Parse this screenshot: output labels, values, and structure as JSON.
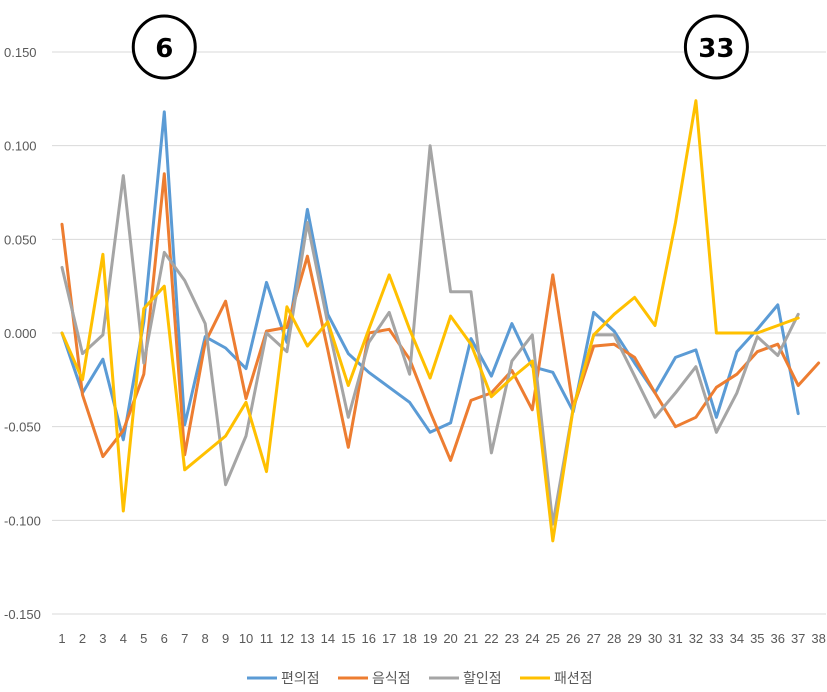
{
  "chart_data": {
    "type": "line",
    "title": "",
    "xlabel": "",
    "ylabel": "",
    "x": [
      "1",
      "2",
      "3",
      "4",
      "5",
      "6",
      "7",
      "8",
      "9",
      "10",
      "11",
      "12",
      "13",
      "14",
      "15",
      "16",
      "17",
      "18",
      "19",
      "20",
      "21",
      "22",
      "23",
      "24",
      "25",
      "26",
      "27",
      "28",
      "29",
      "30",
      "31",
      "32",
      "33",
      "34",
      "35",
      "36",
      "37",
      "38"
    ],
    "ylim": [
      -0.15,
      0.15
    ],
    "yticks": [
      "0.150",
      "0.100",
      "0.050",
      "0.000",
      "-0.050",
      "-0.100",
      "-0.150"
    ],
    "ytick_values": [
      0.15,
      0.1,
      0.05,
      0.0,
      -0.05,
      -0.1,
      -0.15
    ],
    "grid": true,
    "legend_position": "bottom",
    "series": [
      {
        "name": "편의점",
        "color": "#5b9bd5",
        "values": [
          0.0,
          -0.032,
          -0.014,
          -0.057,
          0.006,
          0.118,
          -0.049,
          -0.002,
          -0.008,
          -0.019,
          0.027,
          -0.005,
          0.066,
          0.01,
          -0.011,
          -0.021,
          -0.029,
          -0.037,
          -0.053,
          -0.048,
          -0.003,
          -0.023,
          0.005,
          -0.018,
          -0.021,
          -0.042,
          0.011,
          0.001,
          -0.016,
          -0.032,
          -0.013,
          -0.009,
          -0.045,
          -0.01,
          0.002,
          0.015,
          -0.043,
          null
        ]
      },
      {
        "name": "음식점",
        "color": "#ed7d31",
        "values": [
          0.058,
          -0.033,
          -0.066,
          -0.052,
          -0.022,
          0.085,
          -0.065,
          -0.005,
          0.017,
          -0.035,
          0.001,
          0.003,
          0.041,
          -0.009,
          -0.061,
          0.0,
          0.002,
          -0.014,
          -0.042,
          -0.068,
          -0.036,
          -0.032,
          -0.02,
          -0.041,
          0.031,
          -0.04,
          -0.007,
          -0.006,
          -0.013,
          -0.032,
          -0.05,
          -0.045,
          -0.029,
          -0.022,
          -0.01,
          -0.006,
          -0.028,
          -0.016
        ]
      },
      {
        "name": "할인점",
        "color": "#a5a5a5",
        "values": [
          0.035,
          -0.011,
          -0.001,
          0.084,
          -0.016,
          0.043,
          0.028,
          0.005,
          -0.081,
          -0.055,
          0.0,
          -0.01,
          0.059,
          0.005,
          -0.045,
          -0.005,
          0.011,
          -0.022,
          0.1,
          0.022,
          0.022,
          -0.064,
          -0.015,
          -0.001,
          -0.102,
          -0.04,
          -0.001,
          -0.001,
          -0.023,
          -0.045,
          -0.032,
          -0.018,
          -0.053,
          -0.032,
          -0.002,
          -0.012,
          0.01,
          null
        ]
      },
      {
        "name": "패션점",
        "color": "#ffc000",
        "values": [
          0.0,
          -0.025,
          0.042,
          -0.095,
          0.013,
          0.025,
          -0.073,
          -0.064,
          -0.055,
          -0.037,
          -0.074,
          0.014,
          -0.007,
          0.006,
          -0.028,
          0.002,
          0.031,
          0.002,
          -0.024,
          0.009,
          -0.006,
          -0.034,
          -0.024,
          -0.015,
          -0.111,
          -0.04,
          -0.001,
          0.01,
          0.019,
          0.004,
          0.059,
          0.124,
          0.0,
          0.0,
          0.0,
          0.004,
          0.008,
          null
        ]
      }
    ],
    "annotations": [
      {
        "text": "6",
        "x": "6"
      },
      {
        "text": "33",
        "x": "33"
      }
    ]
  }
}
